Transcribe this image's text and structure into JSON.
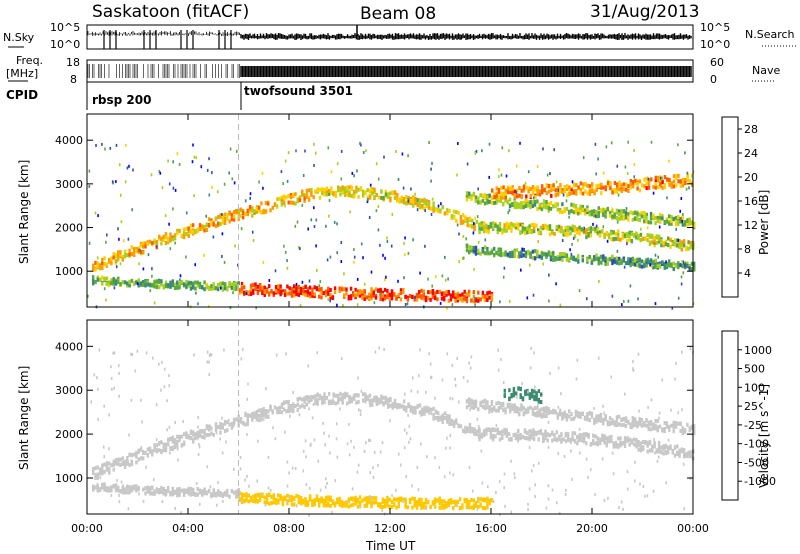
{
  "header": {
    "station": "Saskatoon (fitACF)",
    "beam": "Beam 08",
    "date": "31/Aug/2013"
  },
  "top_panels": {
    "nsky_label": "N.Sky",
    "nsky_ticks": [
      "10^5",
      "10^0"
    ],
    "nsearch_label": "N.Search",
    "nsearch_ticks": [
      "10^5",
      "10^0"
    ],
    "freq_label_line1": "Freq.",
    "freq_label_line2": "[MHz]",
    "freq_ticks": [
      "18",
      "8"
    ],
    "nave_label": "Nave",
    "nave_ticks": [
      "60",
      "0"
    ],
    "cpid_label": "CPID",
    "cpid_segments": [
      {
        "name": "rbsp 200",
        "start": 0,
        "end": 6
      },
      {
        "name": "twofsound 3501",
        "start": 6,
        "end": 24
      }
    ]
  },
  "chart_data": [
    {
      "type": "heatmap",
      "title": "",
      "xlabel": "",
      "ylabel": "Slant Range [km]",
      "x_ticks": [
        "00:00",
        "04:00",
        "08:00",
        "12:00",
        "16:00",
        "20:00",
        "00:00"
      ],
      "xlim": [
        0,
        24
      ],
      "y_ticks": [
        "1000",
        "2000",
        "3000",
        "4000"
      ],
      "ylim": [
        180,
        4600
      ],
      "colorbar": {
        "label": "Power [dB]",
        "ticks": [
          "4",
          "8",
          "12",
          "16",
          "20",
          "24",
          "28"
        ],
        "range": [
          0,
          30
        ],
        "colors": [
          "#0000ff",
          "#2e4fb8",
          "#3b8a78",
          "#58a840",
          "#a8d020",
          "#ffd000",
          "#ff9a00",
          "#ff5a00",
          "#ff0000"
        ]
      },
      "bands": [
        {
          "t0": 0.2,
          "r0": 1080,
          "t1": 6.0,
          "r1": 2300,
          "t2": 9.0,
          "r2": 2780,
          "dr": 120,
          "value": 20
        },
        {
          "t0": 9.0,
          "r0": 2780,
          "t1": 12.0,
          "r1": 2720,
          "t2": 15.5,
          "r2": 2000,
          "dr": 110,
          "value": 18
        },
        {
          "t0": 15.5,
          "r0": 2000,
          "t1": 19.5,
          "r1": 1900,
          "t2": 24.0,
          "r2": 1550,
          "dr": 110,
          "value": 16
        },
        {
          "t0": 15.0,
          "r0": 2700,
          "t1": 19.5,
          "r1": 2400,
          "t2": 24.0,
          "r2": 2100,
          "dr": 100,
          "value": 14
        },
        {
          "t0": 15.0,
          "r0": 1500,
          "t1": 19.5,
          "r1": 1300,
          "t2": 24.0,
          "r2": 1100,
          "dr": 90,
          "value": 10
        },
        {
          "t0": 16.0,
          "r0": 2800,
          "t1": 20.0,
          "r1": 2900,
          "t2": 24.0,
          "r2": 3100,
          "dr": 130,
          "value": 22
        },
        {
          "t0": 6.0,
          "r0": 600,
          "t1": 11.0,
          "r1": 480,
          "t2": 16.0,
          "r2": 420,
          "dr": 120,
          "value": 26
        },
        {
          "t0": 0.2,
          "r0": 800,
          "t1": 3.0,
          "r1": 700,
          "t2": 6.0,
          "r2": 650,
          "dr": 80,
          "value": 12
        }
      ]
    },
    {
      "type": "heatmap",
      "title": "",
      "xlabel": "Time UT",
      "ylabel": "Slant Range [km]",
      "x_ticks": [
        "00:00",
        "04:00",
        "08:00",
        "12:00",
        "16:00",
        "20:00",
        "00:00"
      ],
      "xlim": [
        0,
        24
      ],
      "y_ticks": [
        "1000",
        "2000",
        "3000",
        "4000"
      ],
      "ylim": [
        180,
        4600
      ],
      "colorbar": {
        "label": "Velocity [m s^-1]",
        "ticks": [
          "1000",
          "500",
          "100",
          "25",
          "-25",
          "-100",
          "-500",
          "-1000"
        ],
        "range": [
          -1200,
          1200
        ],
        "colors": [
          "#ff0000",
          "#ff5000",
          "#ff9500",
          "#ffc800",
          "#c8c8c8",
          "#c8c8c8",
          "#58c030",
          "#3d8a70",
          "#2e6aa0",
          "#1f2fc8"
        ]
      },
      "bands": [
        {
          "t0": 0.2,
          "r0": 1080,
          "t1": 6.0,
          "r1": 2300,
          "t2": 9.0,
          "r2": 2780,
          "dr": 130,
          "value": 0
        },
        {
          "t0": 9.0,
          "r0": 2780,
          "t1": 12.0,
          "r1": 2720,
          "t2": 15.5,
          "r2": 2000,
          "dr": 120,
          "value": 0
        },
        {
          "t0": 15.5,
          "r0": 2000,
          "t1": 19.5,
          "r1": 1900,
          "t2": 24.0,
          "r2": 1550,
          "dr": 120,
          "value": 0
        },
        {
          "t0": 15.0,
          "r0": 2700,
          "t1": 19.5,
          "r1": 2400,
          "t2": 24.0,
          "r2": 2100,
          "dr": 110,
          "value": 0
        },
        {
          "t0": 16.5,
          "r0": 2850,
          "t1": 17.5,
          "r1": 2900,
          "t2": 18.0,
          "r2": 2850,
          "dr": 150,
          "value": 600
        },
        {
          "t0": 6.0,
          "r0": 550,
          "t1": 11.0,
          "r1": 450,
          "t2": 16.0,
          "r2": 420,
          "dr": 110,
          "value": -300
        },
        {
          "t0": 0.2,
          "r0": 800,
          "t1": 3.0,
          "r1": 700,
          "t2": 6.0,
          "r2": 650,
          "dr": 80,
          "value": 150
        }
      ]
    }
  ],
  "time_axis_label": "Time UT"
}
